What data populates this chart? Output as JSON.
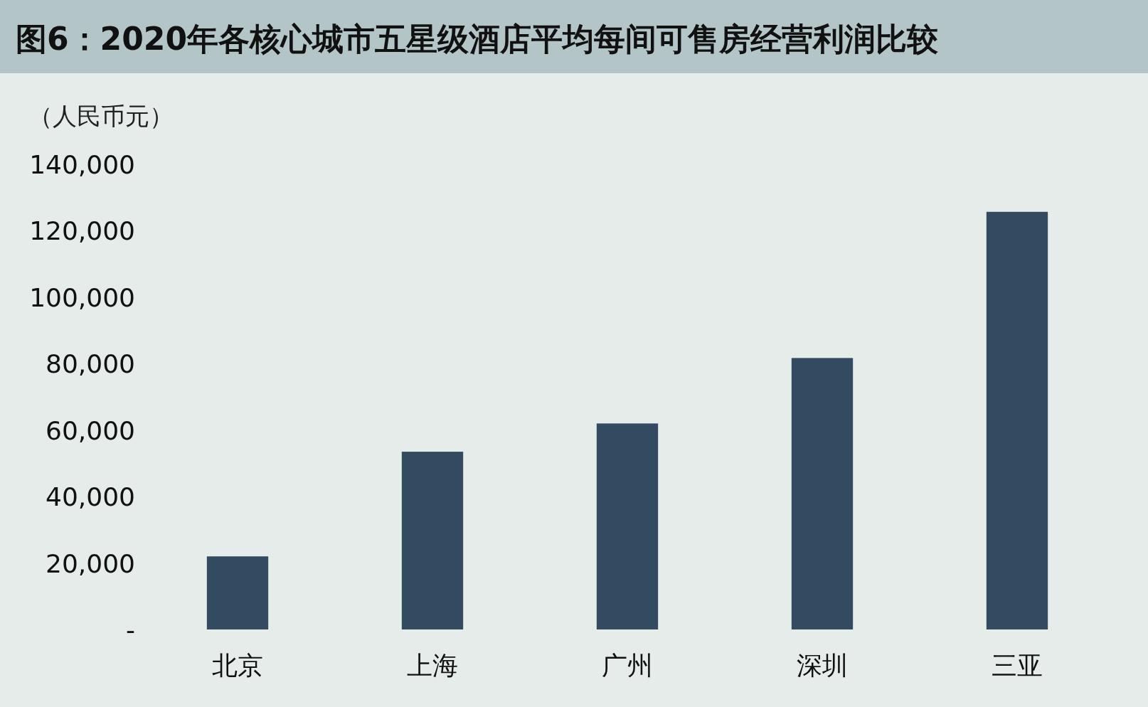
{
  "chart_data": {
    "type": "bar",
    "title": "图6：2020年各核心城市五星级酒店平均每间可售房经营利润比较",
    "ylabel": "（人民币元）",
    "categories": [
      "北京",
      "上海",
      "广州",
      "深圳",
      "三亚"
    ],
    "values": [
      22000,
      53500,
      62000,
      81700,
      125700
    ],
    "color": "#324b61",
    "ylim": [
      0,
      140000
    ],
    "yticks": [
      {
        "value": 0,
        "label": "-"
      },
      {
        "value": 20000,
        "label": "20,000"
      },
      {
        "value": 40000,
        "label": "40,000"
      },
      {
        "value": 60000,
        "label": "60,000"
      },
      {
        "value": 80000,
        "label": "80,000"
      },
      {
        "value": 100000,
        "label": "100,000"
      },
      {
        "value": 120000,
        "label": "120,000"
      },
      {
        "value": 140000,
        "label": "140,000"
      }
    ],
    "grid": false
  }
}
